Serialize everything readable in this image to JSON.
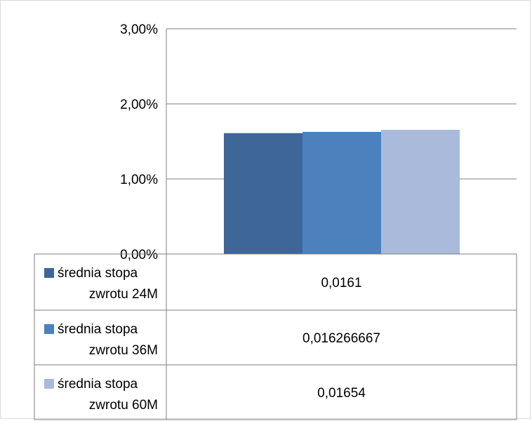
{
  "chart_data": {
    "type": "bar",
    "title": "",
    "xlabel": "",
    "ylabel": "",
    "ylim": [
      0,
      0.03
    ],
    "y_ticks": [
      {
        "value": 0.0,
        "label": "0,00%"
      },
      {
        "value": 0.01,
        "label": "1,00%"
      },
      {
        "value": 0.02,
        "label": "2,00%"
      },
      {
        "value": 0.03,
        "label": "3,00%"
      }
    ],
    "grid": true,
    "legend": "data-table",
    "categories": [
      ""
    ],
    "series": [
      {
        "name": "średnia stopa zwrotu 24M",
        "name_lines": [
          "średnia stopa",
          "zwrotu 24M"
        ],
        "value": 0.0161,
        "display": "0,0161",
        "color": "#3e6699"
      },
      {
        "name": "średnia stopa zwrotu 36M",
        "name_lines": [
          "średnia stopa",
          "zwrotu 36M"
        ],
        "value": 0.016266667,
        "display": "0,016266667",
        "color": "#4b81bd"
      },
      {
        "name": "średnia stopa zwrotu 60M",
        "name_lines": [
          "średnia stopa",
          "zwrotu 60M"
        ],
        "value": 0.01654,
        "display": "0,01654",
        "color": "#a9badb"
      }
    ]
  }
}
